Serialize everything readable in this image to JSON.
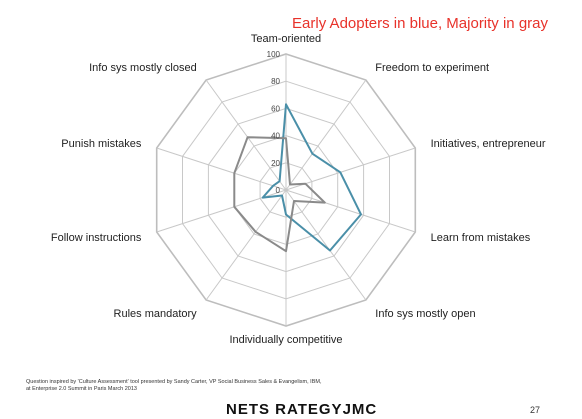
{
  "heading": "Early Adopters in blue, Majority in gray",
  "footnote": "Question inspired by 'Culture Assessment' tool presented by Sandy Carter, VP Social Business Sales & Evangelism, IBM, at Enterprise 2.0 Summit in Paris March 2013",
  "logo": "NETS RATEGYJMC",
  "page_number": "27",
  "colors": {
    "early_adopters": "#4a8fa8",
    "majority": "#8a8a8a",
    "grid": "#c8c8c8",
    "heading": "#e8322a"
  },
  "chart_data": {
    "type": "radar",
    "title": "",
    "axes": [
      "Team-oriented",
      "Freedom to experiment",
      "Initiatives, entrepreneur",
      "Learn from mistakes",
      "Info sys mostly open",
      "Individually competitive",
      "Rules mandatory",
      "Follow instructions",
      "Punish mistakes",
      "Info sys mostly closed"
    ],
    "ticks": [
      0,
      20,
      40,
      60,
      80,
      100
    ],
    "range": [
      0,
      100
    ],
    "series": [
      {
        "color": "#4a8fa8",
        "values": [
          63,
          33,
          42,
          58,
          55,
          18,
          5,
          18,
          10,
          8
        ]
      },
      {
        "color": "#8a8a8a",
        "values": [
          38,
          5,
          15,
          30,
          10,
          45,
          38,
          40,
          40,
          48
        ]
      }
    ]
  }
}
